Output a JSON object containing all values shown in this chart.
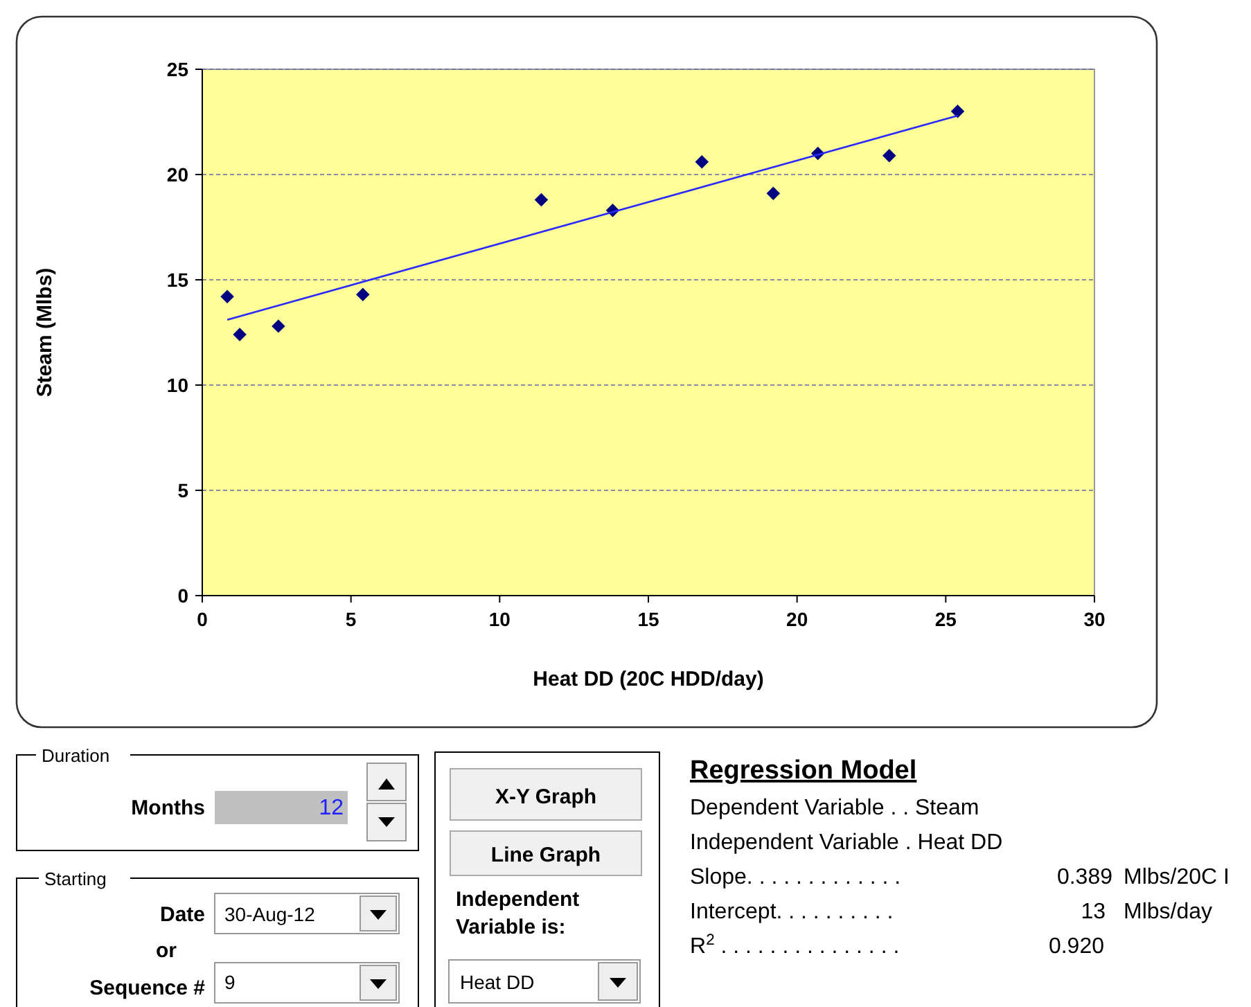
{
  "chart_data": [
    {
      "type": "scatter",
      "xlabel": "Heat DD (20C HDD/day)",
      "ylabel": "Steam (Mlbs)",
      "xlim": [
        0,
        30
      ],
      "xticks": [
        0,
        5,
        10,
        15,
        20,
        25,
        30
      ],
      "ylim": [
        0,
        25
      ],
      "yticks": [
        0,
        5,
        10,
        15,
        20,
        25
      ],
      "grid": "y",
      "marker": "diamond",
      "series": [
        {
          "color": "#000080",
          "x": [
            0.84,
            1.26,
            2.56,
            5.4,
            11.4,
            13.8,
            16.8,
            19.2,
            20.7,
            23.1,
            25.4
          ],
          "values": [
            14.2,
            12.4,
            12.8,
            14.3,
            18.8,
            18.3,
            20.6,
            19.1,
            21.0,
            20.9,
            23.0
          ]
        },
        {
          "type": "line",
          "color": "#2a2aff",
          "marker": "none",
          "x": [
            0.84,
            25.4
          ],
          "values": [
            13.1,
            22.8
          ]
        }
      ]
    },
    {
      "type": "other",
      "annotations": [
        "Duration",
        "Months",
        "12",
        "Starting",
        "Date",
        "30-Aug-12",
        "or",
        "Sequence #",
        "9",
        "X-Y Graph",
        "Line Graph",
        "Independent Variable is:",
        "Heat DD"
      ]
    },
    {
      "type": "other",
      "title": "Regression Model",
      "annotations": [
        "Dependent Variable . . Steam",
        "Independent Variable . Heat DD",
        "Slope. . . . . . . . . . . . .",
        "0.389",
        "Mlbs/20C I",
        "Intercept. . . . . . . . . .",
        "13",
        "Mlbs/day",
        "R$^{2}$ . . . . . . . . . . . . . . .",
        "0.920"
      ]
    }
  ]
}
